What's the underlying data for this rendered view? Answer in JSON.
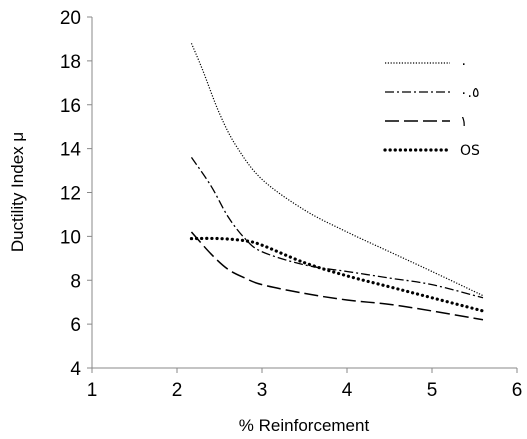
{
  "chart_data": {
    "type": "line",
    "xlabel": "% Reinforcement",
    "ylabel": "Ductility Index μ",
    "xlim": [
      1,
      6
    ],
    "ylim": [
      4,
      20
    ],
    "xticks": [
      "1",
      "2",
      "3",
      "4",
      "5",
      "6"
    ],
    "yticks": [
      "4",
      "6",
      "8",
      "10",
      "12",
      "14",
      "16",
      "18",
      "20"
    ],
    "grid": false,
    "legend_position": "top-right",
    "series": [
      {
        "name": "٠",
        "dash": "dotted-fine",
        "points": [
          [
            2.17,
            18.8
          ],
          [
            2.3,
            17.6
          ],
          [
            2.5,
            15.6
          ],
          [
            2.7,
            14.1
          ],
          [
            3.0,
            12.6
          ],
          [
            3.5,
            11.2
          ],
          [
            4.0,
            10.2
          ],
          [
            4.5,
            9.3
          ],
          [
            5.0,
            8.4
          ],
          [
            5.6,
            7.3
          ]
        ]
      },
      {
        "name": "٠.٥",
        "dash": "dash-dot",
        "points": [
          [
            2.17,
            13.6
          ],
          [
            2.4,
            12.3
          ],
          [
            2.6,
            10.9
          ],
          [
            2.8,
            9.9
          ],
          [
            3.0,
            9.3
          ],
          [
            3.5,
            8.7
          ],
          [
            4.0,
            8.4
          ],
          [
            4.5,
            8.1
          ],
          [
            5.0,
            7.8
          ],
          [
            5.6,
            7.2
          ]
        ]
      },
      {
        "name": "١",
        "dash": "long-dash",
        "points": [
          [
            2.17,
            10.2
          ],
          [
            2.4,
            9.2
          ],
          [
            2.6,
            8.5
          ],
          [
            2.8,
            8.1
          ],
          [
            3.0,
            7.8
          ],
          [
            3.5,
            7.4
          ],
          [
            4.0,
            7.1
          ],
          [
            4.5,
            6.9
          ],
          [
            5.0,
            6.6
          ],
          [
            5.6,
            6.2
          ]
        ]
      },
      {
        "name": "OS",
        "dash": "dotted-bold",
        "points": [
          [
            2.17,
            9.9
          ],
          [
            2.5,
            9.9
          ],
          [
            2.8,
            9.8
          ],
          [
            3.0,
            9.6
          ],
          [
            3.5,
            8.8
          ],
          [
            4.0,
            8.2
          ],
          [
            4.5,
            7.7
          ],
          [
            5.0,
            7.2
          ],
          [
            5.6,
            6.6
          ]
        ]
      }
    ]
  }
}
